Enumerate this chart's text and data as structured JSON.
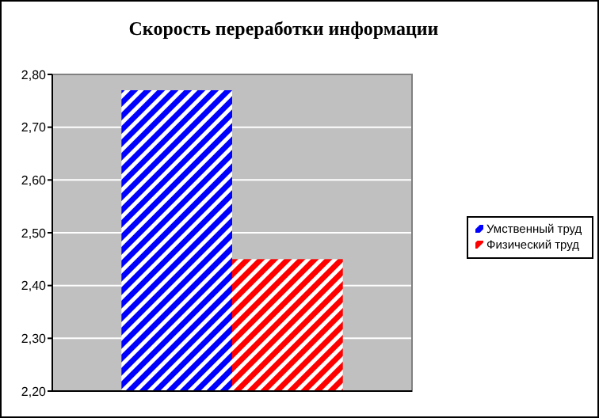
{
  "chart_data": {
    "type": "bar",
    "title": "Скорость переработки информации",
    "categories": [
      null
    ],
    "series": [
      {
        "name": "Умственный труд",
        "color": "#0000ff",
        "values": [
          2.77
        ]
      },
      {
        "name": "Физический труд",
        "color": "#ff0000",
        "values": [
          2.45
        ]
      }
    ],
    "ylim": [
      2.2,
      2.8
    ],
    "yticks": [
      {
        "value": 2.2,
        "label": "2,20"
      },
      {
        "value": 2.3,
        "label": "2,30"
      },
      {
        "value": 2.4,
        "label": "2,40"
      },
      {
        "value": 2.5,
        "label": "2,50"
      },
      {
        "value": 2.6,
        "label": "2,60"
      },
      {
        "value": 2.7,
        "label": "2,70"
      },
      {
        "value": 2.8,
        "label": "2,80"
      }
    ],
    "grid": "y",
    "legend": "right"
  }
}
